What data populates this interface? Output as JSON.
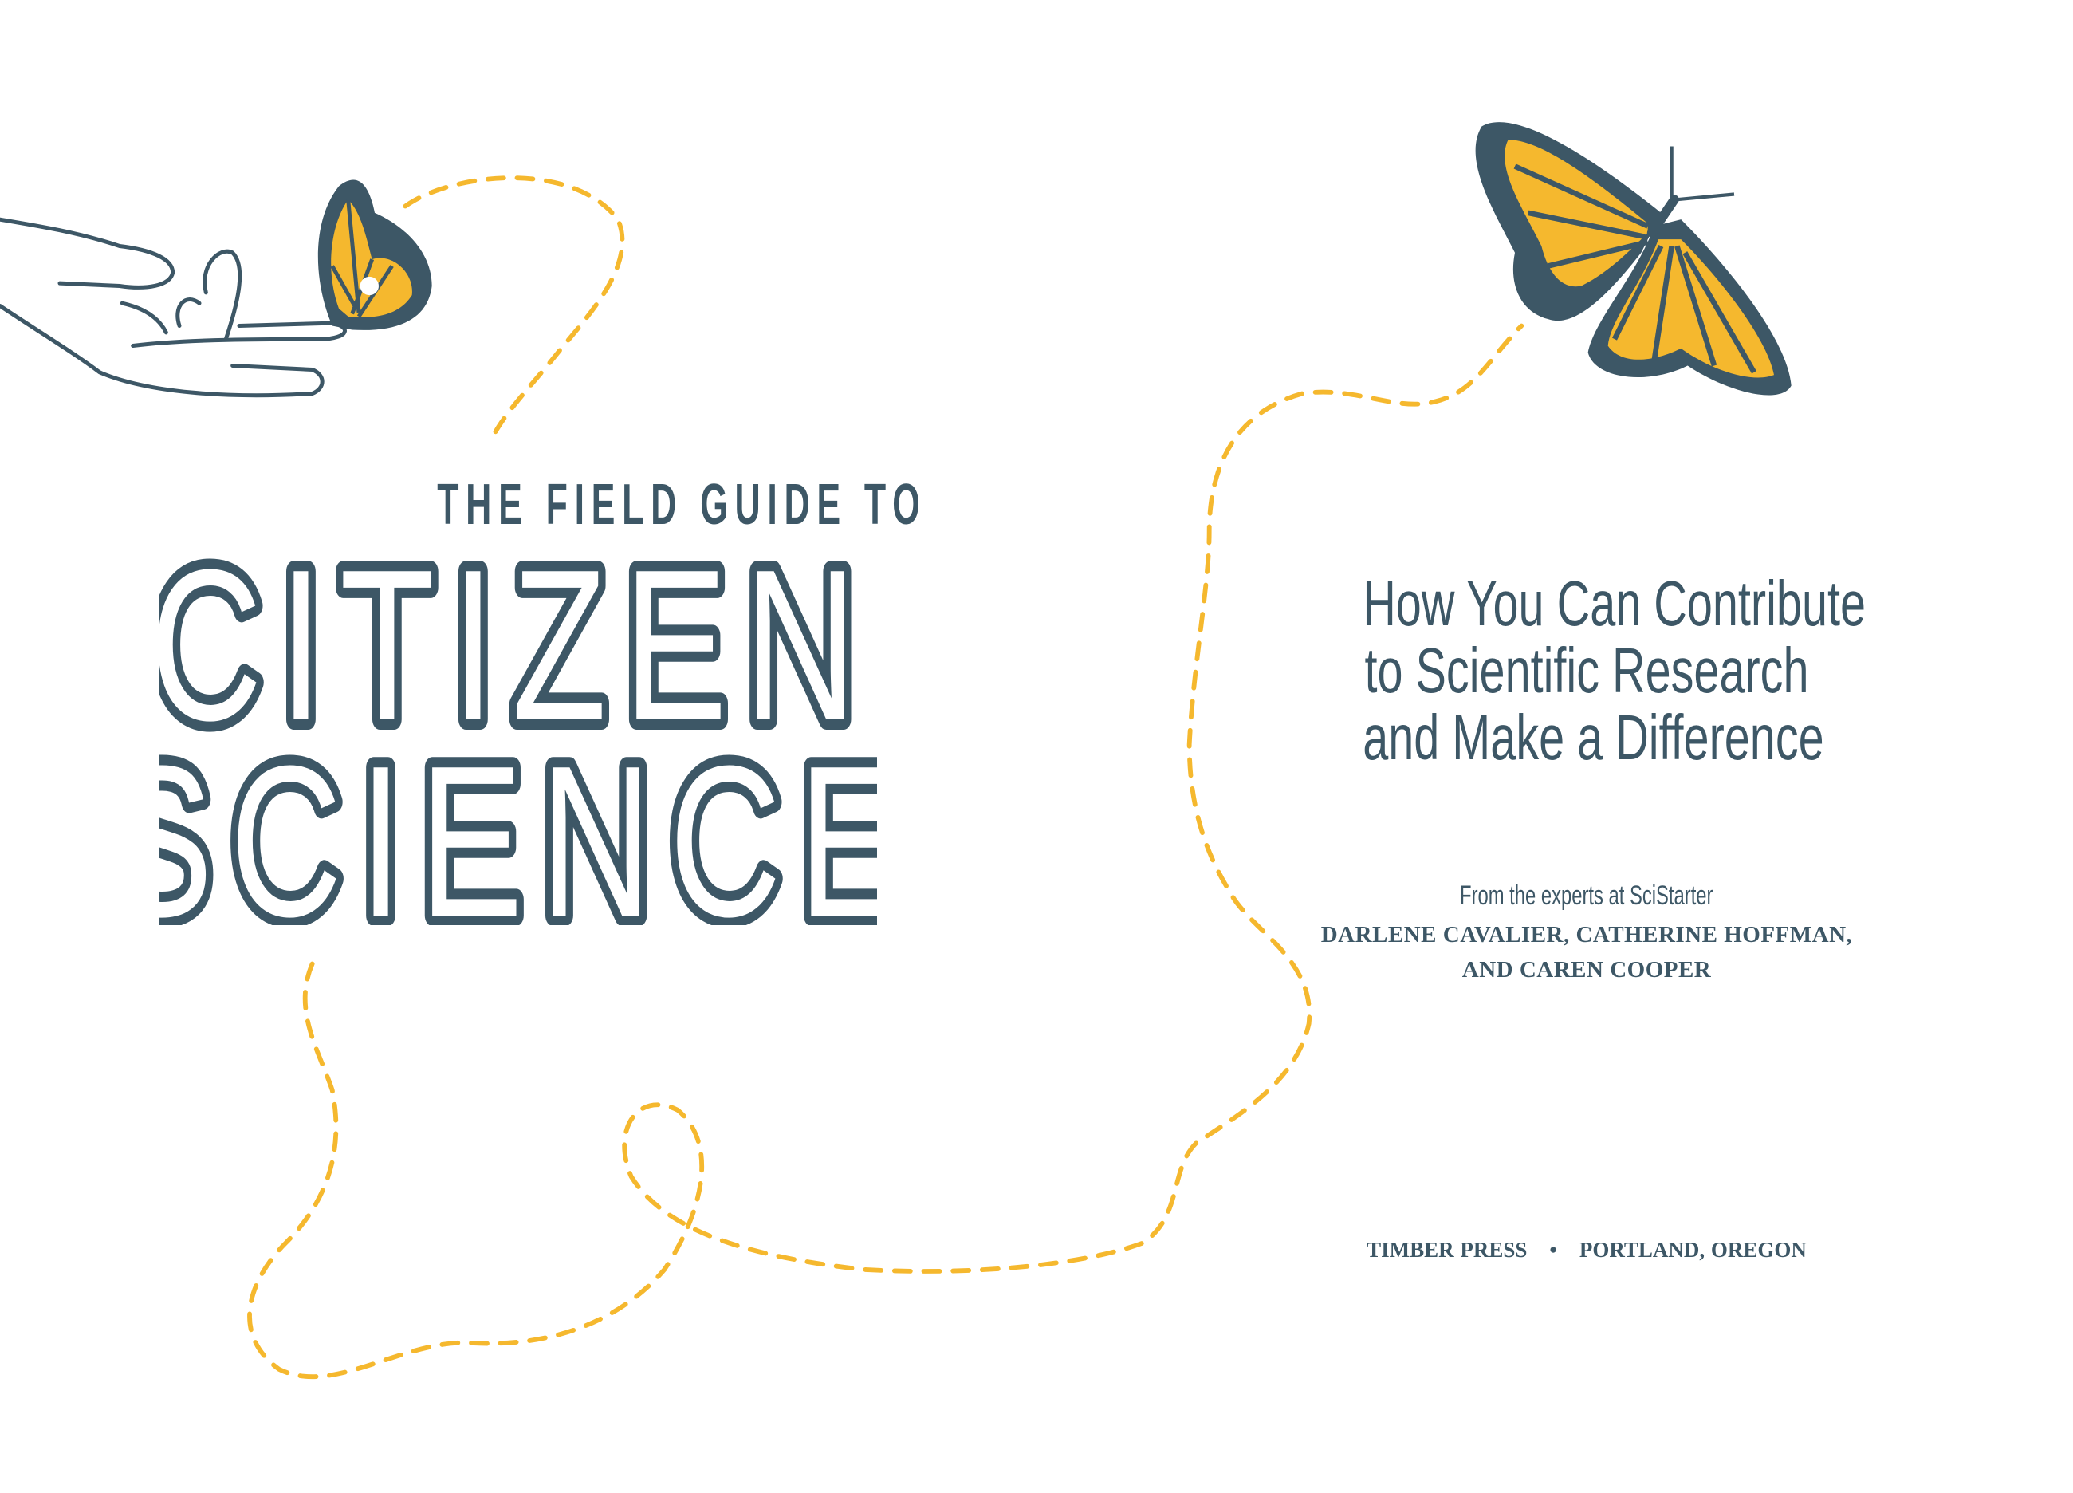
{
  "series_title": "THE FIELD GUIDE TO",
  "title_line1": "CITIZEN",
  "title_line2": "SCIENCE",
  "subtitle": [
    "How You Can Contribute",
    "to Scientific Research",
    "and Make a Difference"
  ],
  "from_line": "From the experts at SciStarter",
  "authors": [
    "DARLENE CAVALIER, CATHERINE HOFFMAN,",
    "AND CAREN COOPER"
  ],
  "publisher": {
    "name": "TIMBER PRESS",
    "separator": "•",
    "location": "PORTLAND, OREGON"
  },
  "colors": {
    "ink": "#3d5766",
    "accent": "#f5b82e",
    "background": "#ffffff"
  },
  "icons": [
    "hand-icon",
    "monarch-butterfly-icon"
  ]
}
